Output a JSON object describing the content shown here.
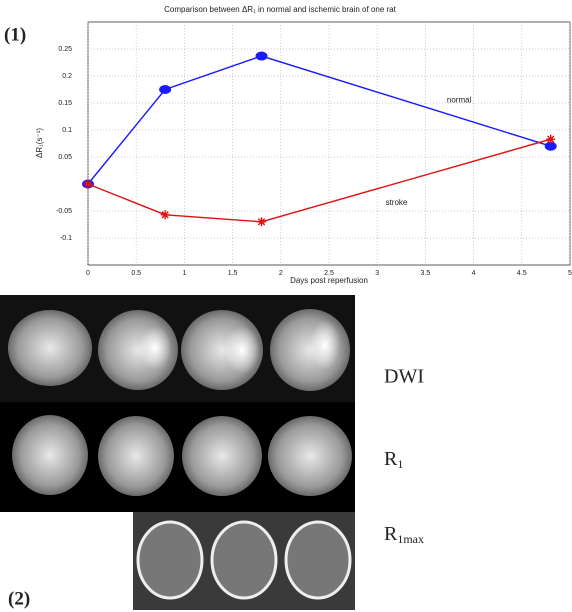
{
  "panel_labels": [
    "(1)",
    "(2)"
  ],
  "image_labels": {
    "dwi": "DWI",
    "r1": {
      "base": "R",
      "sub": "1"
    },
    "r1max": {
      "base": "R",
      "sub": "1max"
    }
  },
  "chart_data": {
    "type": "line",
    "title": "Comparison between ΔR₁ in normal and ischemic brain of one rat",
    "x_label": "Days post reperfusion",
    "y_label": "ΔR₁(s⁻¹)",
    "xlim": [
      0,
      5
    ],
    "xticks": [
      0,
      0.5,
      1,
      1.5,
      2,
      2.5,
      3,
      3.5,
      4,
      4.5,
      5
    ],
    "ylim": [
      -0.15,
      0.3
    ],
    "yticks": [
      -0.1,
      -0.05,
      0.05,
      0.1,
      0.15,
      0.2,
      0.25
    ],
    "grid": true,
    "series": [
      {
        "name": "normal",
        "color": "#1a1aff",
        "marker": "circle",
        "x": [
          0,
          0.8,
          1.8,
          4.8
        ],
        "values": [
          0,
          0.175,
          0.237,
          0.07
        ]
      },
      {
        "name": "stroke",
        "color": "#e01010",
        "marker": "star",
        "x": [
          0,
          0.8,
          1.8,
          4.8
        ],
        "values": [
          0,
          -0.057,
          -0.07,
          0.083
        ]
      }
    ],
    "annotations": [
      {
        "text": "normal",
        "x": 3.85,
        "y": 0.155
      },
      {
        "text": "stroke",
        "x": 3.2,
        "y": -0.035
      }
    ]
  }
}
